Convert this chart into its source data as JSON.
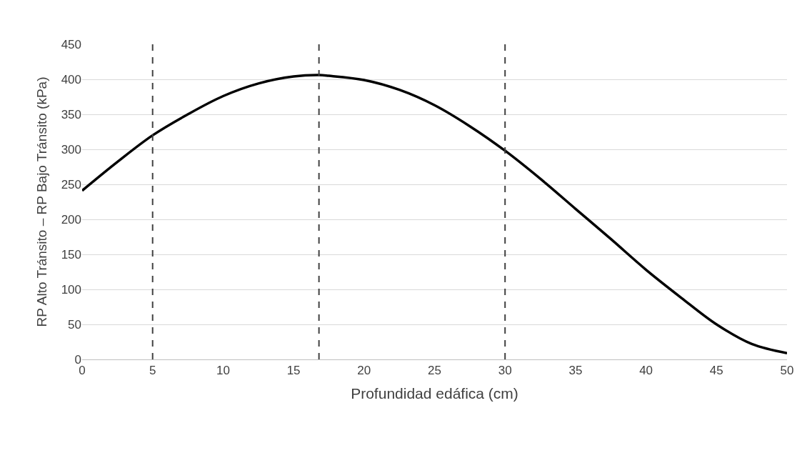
{
  "chart_data": {
    "type": "line",
    "xlabel": "Profundidad edáfica (cm)",
    "ylabel": "RP Alto Tránsito – RP Bajo Tránsito (kPa)",
    "x": [
      0,
      2.5,
      5,
      7.5,
      10,
      12.5,
      15,
      16.8,
      17.5,
      20,
      22.5,
      25,
      27.5,
      30,
      32.5,
      35,
      37.5,
      40,
      42.5,
      45,
      47.5,
      50
    ],
    "series": [
      {
        "color": "#000000",
        "values": [
          241,
          282,
          320,
          350,
          376,
          394,
          404,
          406,
          405,
          399,
          385,
          363,
          333,
          298,
          258,
          215,
          172,
          128,
          88,
          50,
          22,
          9
        ]
      }
    ],
    "xlim": [
      0,
      50
    ],
    "xticks": [
      0,
      5,
      10,
      15,
      20,
      25,
      30,
      35,
      40,
      45,
      50
    ],
    "ylim": [
      0,
      450
    ],
    "yticks": [
      0,
      50,
      100,
      150,
      200,
      250,
      300,
      350,
      400,
      450
    ],
    "grid": "y",
    "marker": "none",
    "line_style": "solid",
    "ref_lines": [
      {
        "axis": "x",
        "value": 5,
        "color": "#404040",
        "line_style": "dashed"
      },
      {
        "axis": "x",
        "value": 16.8,
        "color": "#404040",
        "line_style": "dashed"
      },
      {
        "axis": "x",
        "value": 30,
        "color": "#404040",
        "line_style": "dashed"
      }
    ]
  }
}
